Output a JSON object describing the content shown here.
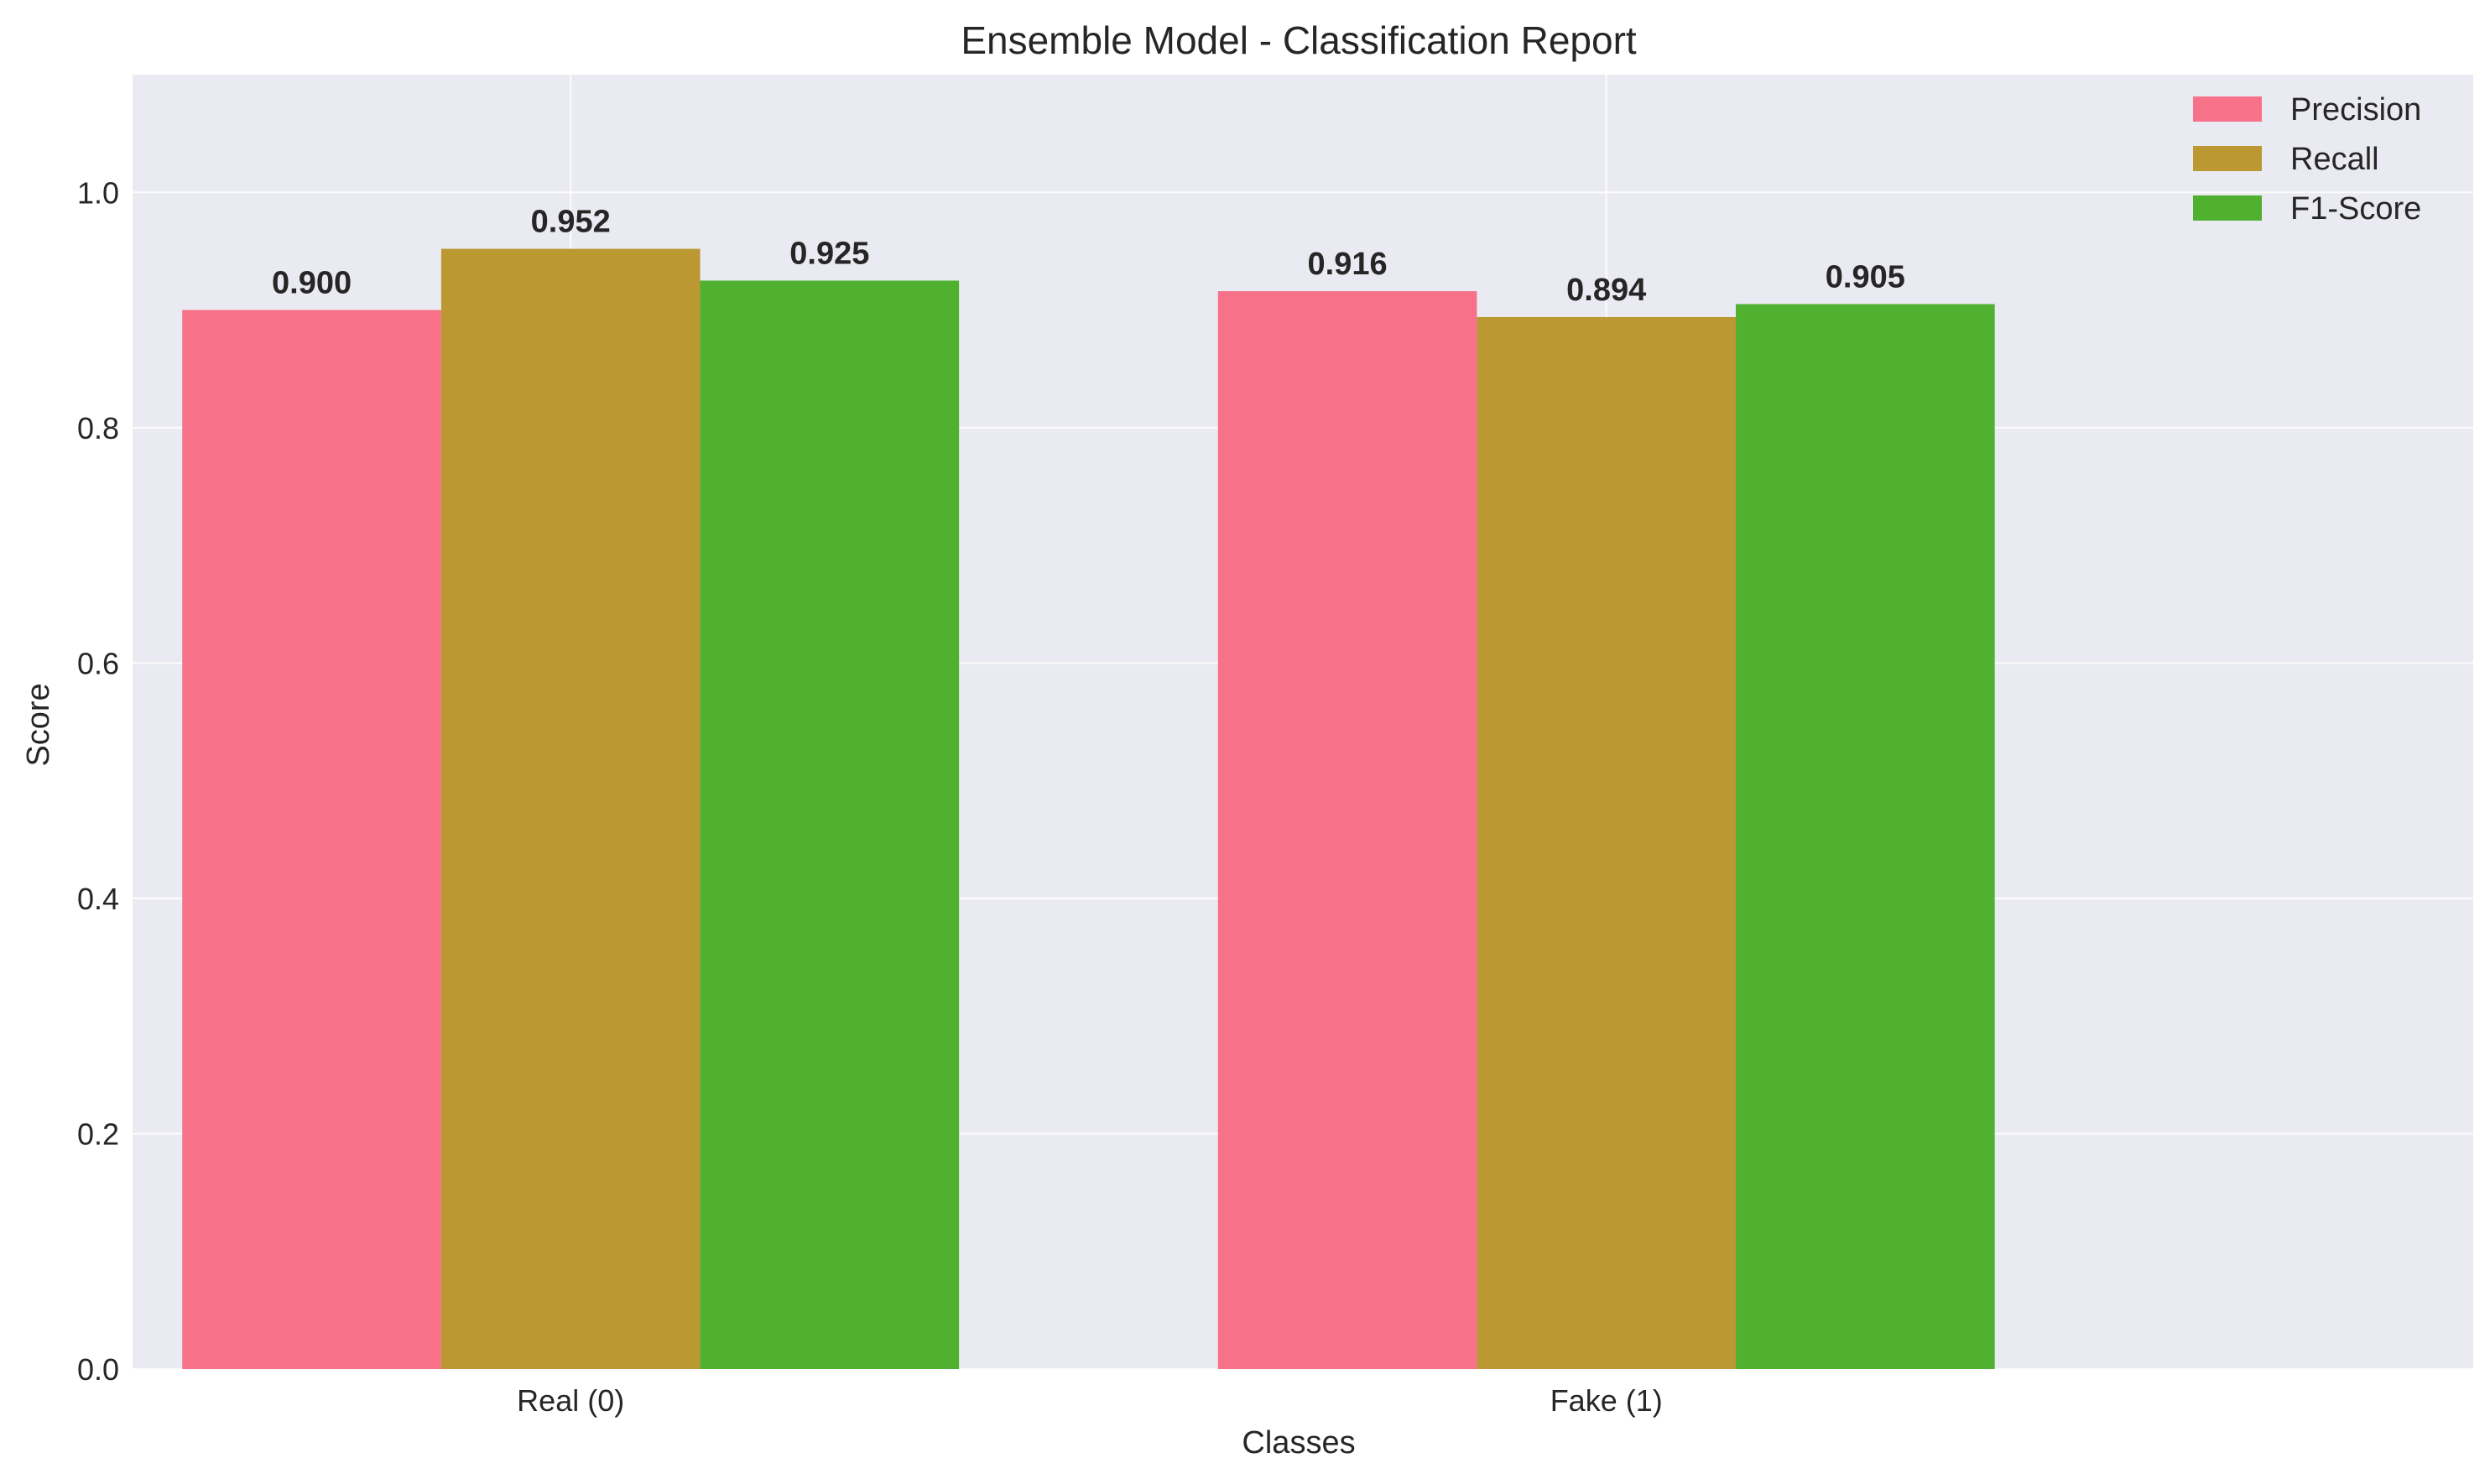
{
  "chart_data": {
    "type": "bar",
    "title": "Ensemble Model - Classification Report",
    "xlabel": "Classes",
    "ylabel": "Score",
    "categories": [
      "Real (0)",
      "Fake (1)"
    ],
    "series": [
      {
        "name": "Precision",
        "values": [
          0.9,
          0.916
        ],
        "labels": [
          "0.900",
          "0.916"
        ],
        "color": "#f77189"
      },
      {
        "name": "Recall",
        "values": [
          0.952,
          0.894
        ],
        "labels": [
          "0.952",
          "0.894"
        ],
        "color": "#bb9832"
      },
      {
        "name": "F1-Score",
        "values": [
          0.925,
          0.905
        ],
        "labels": [
          "0.925",
          "0.905"
        ],
        "color": "#50b131"
      }
    ],
    "ylim": [
      0,
      1.1
    ],
    "yticks": [
      0.0,
      0.2,
      0.4,
      0.6,
      0.8,
      1.0
    ],
    "ytick_labels": [
      "0.0",
      "0.2",
      "0.4",
      "0.6",
      "0.8",
      "1.0"
    ],
    "grid": true,
    "legend_position": "top-right",
    "background": "#eaeaf2"
  }
}
